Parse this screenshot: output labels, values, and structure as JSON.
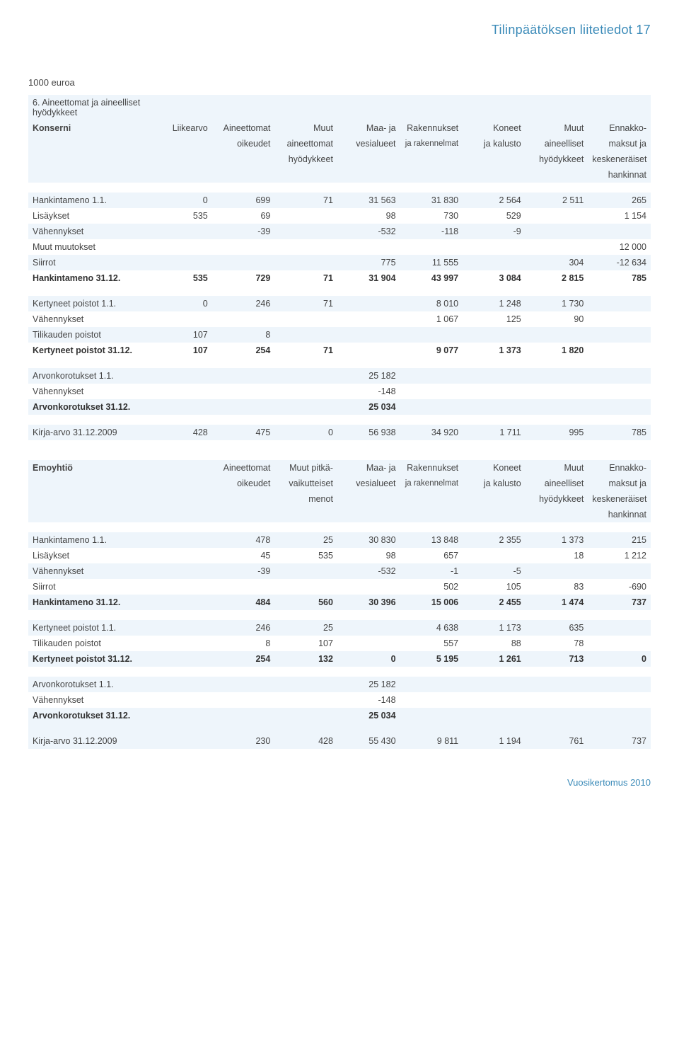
{
  "header": {
    "title": "Tilinpäätöksen liitetiedot 17"
  },
  "unit_label": "1000 euroa",
  "section6_title": "6. Aineettomat ja aineelliset hyödykkeet",
  "konserni": {
    "label": "Konserni",
    "cols": {
      "c1": [
        "Liikearvo",
        "",
        "",
        ""
      ],
      "c2": [
        "Aineettomat",
        "oikeudet",
        "",
        ""
      ],
      "c3": [
        "Muut",
        "aineettomat",
        "hyödykkeet",
        ""
      ],
      "c4": [
        "Maa- ja",
        "vesialueet",
        "",
        ""
      ],
      "c5": [
        "Rakennukset",
        "ja rakennelmat",
        "",
        ""
      ],
      "c6": [
        "Koneet",
        "ja kalusto",
        "",
        ""
      ],
      "c7": [
        "Muut",
        "aineelliset",
        "hyödykkeet",
        ""
      ],
      "c8": [
        "Ennakko-",
        "maksut ja",
        "keskeneräiset",
        "hankinnat"
      ]
    },
    "rows": [
      {
        "label": "Hankintameno 1.1.",
        "v": [
          "0",
          "699",
          "71",
          "31 563",
          "31 830",
          "2 564",
          "2 511",
          "265"
        ]
      },
      {
        "label": "Lisäykset",
        "v": [
          "535",
          "69",
          "",
          "98",
          "730",
          "529",
          "",
          "1 154"
        ]
      },
      {
        "label": "Vähennykset",
        "v": [
          "",
          "-39",
          "",
          "-532",
          "-118",
          "-9",
          "",
          ""
        ]
      },
      {
        "label": "Muut muutokset",
        "v": [
          "",
          "",
          "",
          "",
          "",
          "",
          "",
          "12 000"
        ]
      },
      {
        "label": "Siirrot",
        "v": [
          "",
          "",
          "",
          "775",
          "11 555",
          "",
          "304",
          "-12 634"
        ]
      },
      {
        "label": "Hankintameno 31.12.",
        "v": [
          "535",
          "729",
          "71",
          "31 904",
          "43 997",
          "3 084",
          "2 815",
          "785"
        ],
        "bold": true
      }
    ],
    "poistot": [
      {
        "label": "Kertyneet poistot 1.1.",
        "v": [
          "0",
          "246",
          "71",
          "",
          "8 010",
          "1 248",
          "1 730",
          ""
        ]
      },
      {
        "label": "Vähennykset",
        "v": [
          "",
          "",
          "",
          "",
          "1 067",
          "125",
          "90",
          ""
        ]
      },
      {
        "label": "Tilikauden poistot",
        "v": [
          "107",
          "8",
          "",
          "",
          "",
          "",
          "",
          ""
        ]
      },
      {
        "label": "Kertyneet poistot 31.12.",
        "v": [
          "107",
          "254",
          "71",
          "",
          "9 077",
          "1 373",
          "1 820",
          ""
        ],
        "bold": true
      }
    ],
    "arvonk": [
      {
        "label": "Arvonkorotukset 1.1.",
        "v": [
          "",
          "",
          "",
          "25 182",
          "",
          "",
          "",
          ""
        ]
      },
      {
        "label": "Vähennykset",
        "v": [
          "",
          "",
          "",
          "-148",
          "",
          "",
          "",
          ""
        ]
      },
      {
        "label": "Arvonkorotukset 31.12.",
        "v": [
          "",
          "",
          "",
          "25 034",
          "",
          "",
          "",
          ""
        ],
        "bold": true
      }
    ],
    "kirja": {
      "label": "Kirja-arvo 31.12.2009",
      "v": [
        "428",
        "475",
        "0",
        "56 938",
        "34 920",
        "1 711",
        "995",
        "785"
      ]
    }
  },
  "emoyhtio": {
    "label": "Emoyhtiö",
    "cols": {
      "c2": [
        "Aineettomat",
        "oikeudet",
        "",
        ""
      ],
      "c3": [
        "Muut pitkä-",
        "vaikutteiset",
        "menot",
        ""
      ],
      "c4": [
        "Maa- ja",
        "vesialueet",
        "",
        ""
      ],
      "c5": [
        "Rakennukset",
        "ja rakennelmat",
        "",
        ""
      ],
      "c6": [
        "Koneet",
        "ja kalusto",
        "",
        ""
      ],
      "c7": [
        "Muut",
        "aineelliset",
        "hyödykkeet",
        ""
      ],
      "c8": [
        "Ennakko-",
        "maksut ja",
        "keskeneräiset",
        "hankinnat"
      ]
    },
    "rows": [
      {
        "label": "Hankintameno 1.1.",
        "v": [
          "",
          "478",
          "25",
          "30 830",
          "13 848",
          "2 355",
          "1 373",
          "215"
        ]
      },
      {
        "label": "Lisäykset",
        "v": [
          "",
          "45",
          "535",
          "98",
          "657",
          "",
          "18",
          "1 212"
        ]
      },
      {
        "label": "Vähennykset",
        "v": [
          "",
          "-39",
          "",
          "-532",
          "-1",
          "-5",
          "",
          ""
        ]
      },
      {
        "label": "Siirrot",
        "v": [
          "",
          "",
          "",
          "",
          "502",
          "105",
          "83",
          "-690"
        ]
      },
      {
        "label": "Hankintameno 31.12.",
        "v": [
          "",
          "484",
          "560",
          "30 396",
          "15 006",
          "2 455",
          "1 474",
          "737"
        ],
        "bold": true
      }
    ],
    "poistot": [
      {
        "label": "Kertyneet poistot 1.1.",
        "v": [
          "",
          "246",
          "25",
          "",
          "4 638",
          "1 173",
          "635",
          ""
        ]
      },
      {
        "label": "Tilikauden poistot",
        "v": [
          "",
          "8",
          "107",
          "",
          "557",
          "88",
          "78",
          ""
        ]
      },
      {
        "label": "Kertyneet poistot 31.12.",
        "v": [
          "",
          "254",
          "132",
          "0",
          "5 195",
          "1 261",
          "713",
          "0"
        ],
        "bold": true
      }
    ],
    "arvonk": [
      {
        "label": "Arvonkorotukset 1.1.",
        "v": [
          "",
          "",
          "",
          "25 182",
          "",
          "",
          "",
          ""
        ]
      },
      {
        "label": "Vähennykset",
        "v": [
          "",
          "",
          "",
          "-148",
          "",
          "",
          "",
          ""
        ]
      },
      {
        "label": "Arvonkorotukset 31.12.",
        "v": [
          "",
          "",
          "",
          "25 034",
          "",
          "",
          "",
          ""
        ],
        "bold": true
      }
    ],
    "kirja": {
      "label": "Kirja-arvo 31.12.2009",
      "v": [
        "",
        "230",
        "428",
        "55 430",
        "9 811",
        "1 194",
        "761",
        "737"
      ]
    }
  },
  "footer": {
    "text": "Vuosikertomus 2010"
  }
}
